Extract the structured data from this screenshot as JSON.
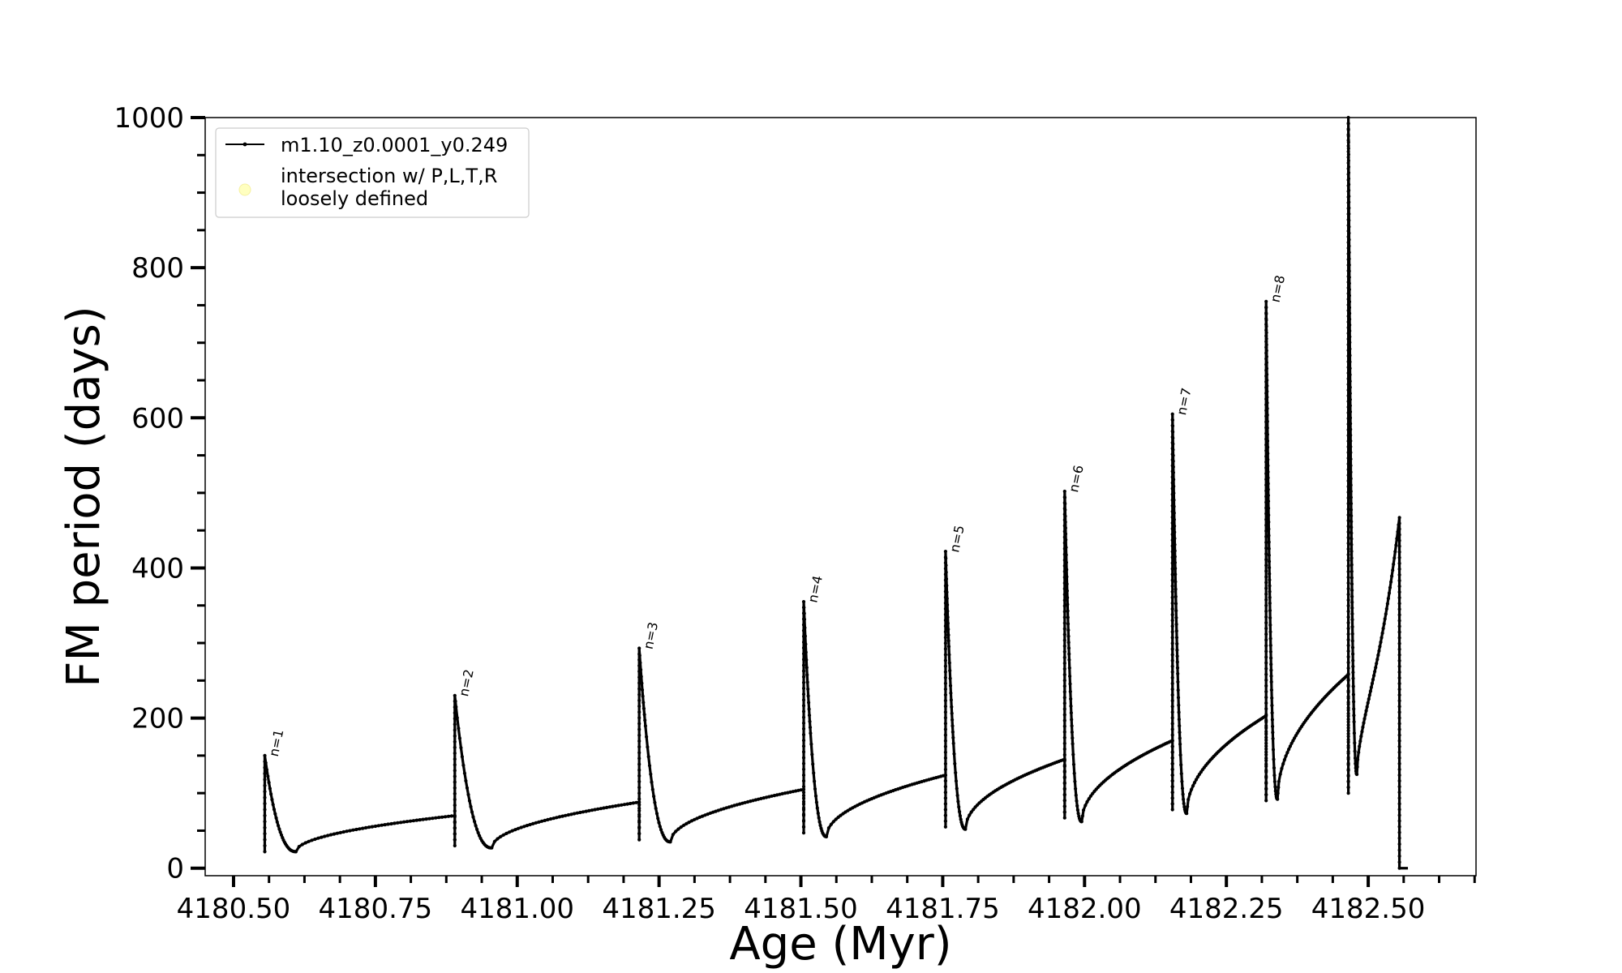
{
  "chart_data": {
    "type": "line",
    "title": "",
    "xlabel": "Age (Myr)",
    "ylabel": "FM period (days)",
    "xlim": [
      4180.45,
      4182.69
    ],
    "ylim": [
      -10,
      1000
    ],
    "xticks": [
      4180.5,
      4180.75,
      4181.0,
      4181.25,
      4181.5,
      4181.75,
      4182.0,
      4182.25,
      4182.5
    ],
    "xtick_labels": [
      "4180.50",
      "4180.75",
      "4181.00",
      "4181.25",
      "4181.50",
      "4181.75",
      "4182.00",
      "4182.25",
      "4182.50"
    ],
    "yticks": [
      0,
      200,
      400,
      600,
      800,
      1000
    ],
    "ytick_labels": [
      "0",
      "200",
      "400",
      "600",
      "800",
      "1000"
    ],
    "grid": false,
    "legend": {
      "placement": "top-left",
      "entries": [
        {
          "label": "m1.10_z0.0001_y0.249",
          "style": "line-with-dots",
          "color": "#000000"
        },
        {
          "label_lines": [
            "intersection w/ P,L,T,R",
            "loosely defined"
          ],
          "style": "marker",
          "color": "#ffffc0"
        }
      ]
    },
    "series": [
      {
        "name": "m1.10_z0.0001_y0.249",
        "color": "#000000",
        "cycles": [
          {
            "label": "n=1",
            "x_start": 4180.555,
            "y_peak": 150,
            "y_drop": 22,
            "min_x": 4180.61,
            "min_y": 22,
            "x_end": 4180.89,
            "y_end": 70
          },
          {
            "label": "n=2",
            "x_start": 4180.89,
            "y_peak": 230,
            "y_drop": 30,
            "min_x": 4180.955,
            "min_y": 27,
            "x_end": 4181.215,
            "y_end": 88
          },
          {
            "label": "n=3",
            "x_start": 4181.215,
            "y_peak": 293,
            "y_drop": 38,
            "min_x": 4181.27,
            "min_y": 35,
            "x_end": 4181.505,
            "y_end": 105
          },
          {
            "label": "n=4",
            "x_start": 4181.505,
            "y_peak": 355,
            "y_drop": 47,
            "min_x": 4181.545,
            "min_y": 42,
            "x_end": 4181.755,
            "y_end": 124
          },
          {
            "label": "n=5",
            "x_start": 4181.755,
            "y_peak": 422,
            "y_drop": 55,
            "min_x": 4181.79,
            "min_y": 52,
            "x_end": 4181.965,
            "y_end": 145
          },
          {
            "label": "n=6",
            "x_start": 4181.965,
            "y_peak": 502,
            "y_drop": 67,
            "min_x": 4181.995,
            "min_y": 62,
            "x_end": 4182.155,
            "y_end": 170
          },
          {
            "label": "n=7",
            "x_start": 4182.155,
            "y_peak": 605,
            "y_drop": 78,
            "min_x": 4182.18,
            "min_y": 73,
            "x_end": 4182.32,
            "y_end": 203
          },
          {
            "label": "n=8",
            "x_start": 4182.32,
            "y_peak": 755,
            "y_drop": 90,
            "min_x": 4182.34,
            "min_y": 92,
            "x_end": 4182.465,
            "y_end": 258
          },
          {
            "label": "",
            "x_start": 4182.465,
            "y_peak": 1000,
            "y_drop": 100,
            "min_x": 4182.48,
            "min_y": 125,
            "x_end": 4182.555,
            "y_end": 467
          }
        ],
        "final_drop": {
          "x": 4182.555,
          "y_low": 0,
          "x_tail_end": 4182.57
        }
      }
    ]
  }
}
